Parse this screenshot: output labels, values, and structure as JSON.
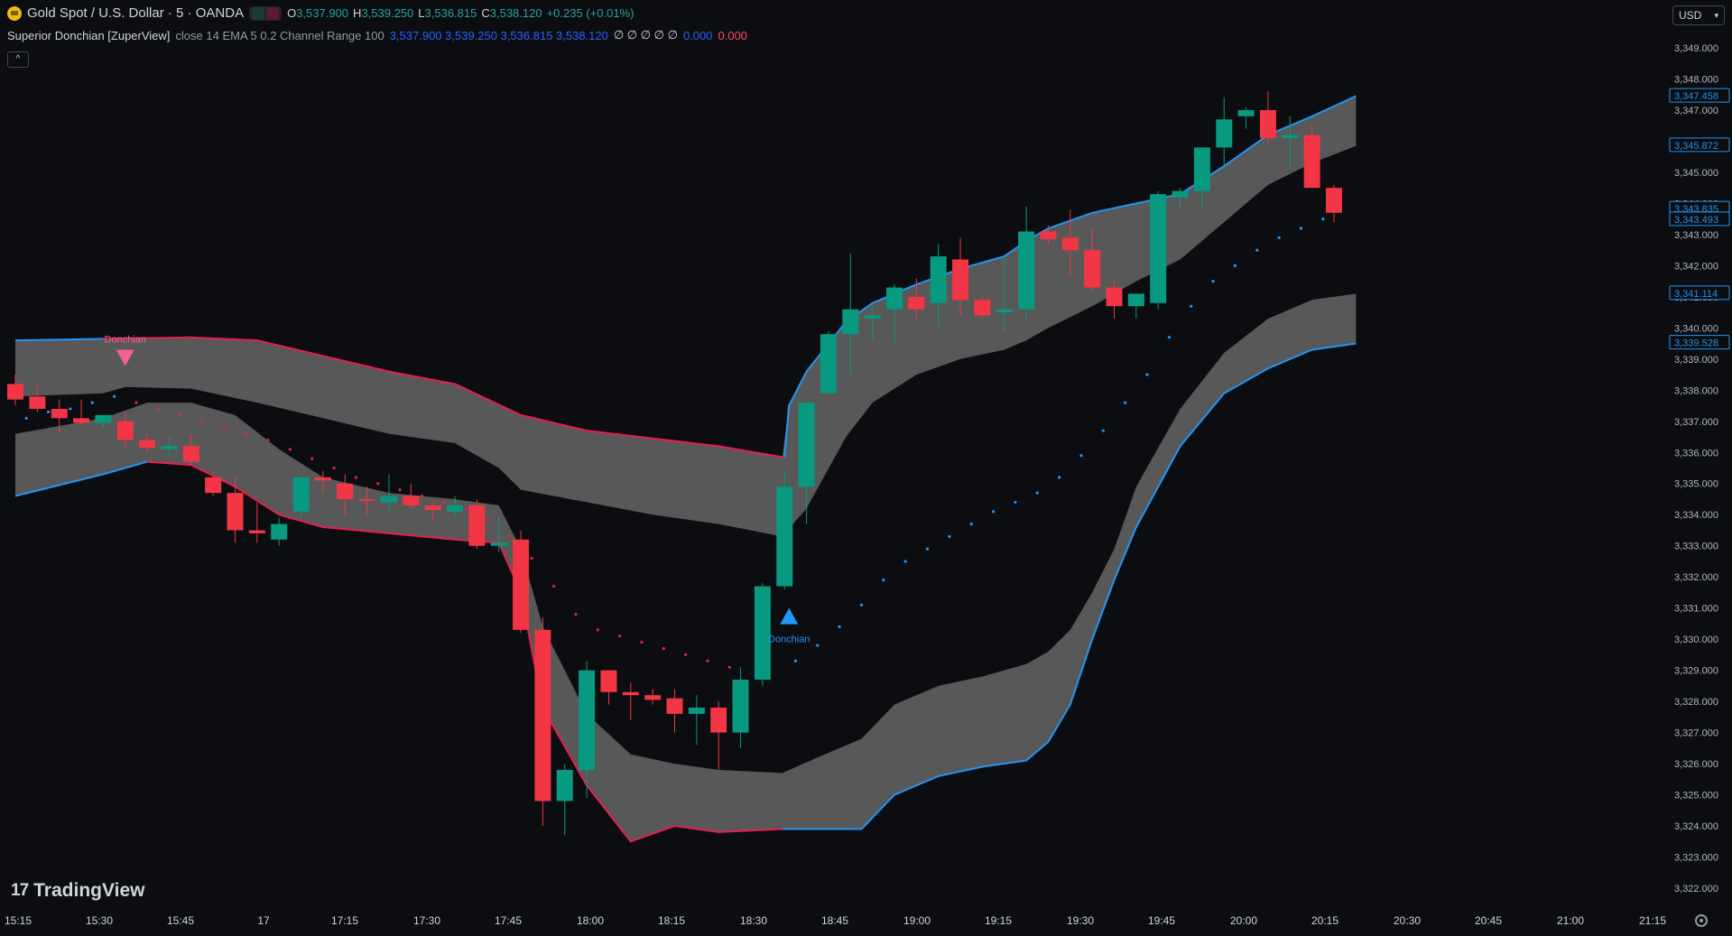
{
  "header": {
    "symbol_title": "Gold Spot / U.S. Dollar · 5 · OANDA",
    "ohlc": {
      "open_label": "O",
      "open": "3,537.900",
      "high_label": "H",
      "high": "3,539.250",
      "low_label": "L",
      "low": "3,536.815",
      "close_label": "C",
      "close": "3,538.120",
      "change": "+0.235 (+0.01%)"
    },
    "indicator": {
      "name": "Superior Donchian [ZuperView]",
      "params": "close 14 EMA 5 0.2 Channel Range 100",
      "values_blue": "3,537.900 3,539.250 3,536.815 3,538.120",
      "values_white": "∅ ∅ ∅ ∅ ∅",
      "value_blue2": "0.000",
      "value_red": "0.000"
    },
    "collapse_icon": "chevron-up-icon"
  },
  "currency_selector": {
    "value": "USD"
  },
  "logo": {
    "text": "TradingView",
    "icon": "tradingview-logo-icon"
  },
  "colors": {
    "bull": "#089981",
    "bear": "#f23645",
    "band_fill": "#5d5d5e",
    "line_blue": "#2196f3",
    "line_red": "#e91e4d",
    "signal_down": "#f06292",
    "signal_up": "#2196f3"
  },
  "chart_data": {
    "type": "candlestick",
    "title": "Gold Spot / U.S. Dollar · 5 · OANDA",
    "x_ticks": [
      "15:15",
      "15:30",
      "15:45",
      "17",
      "17:15",
      "17:30",
      "17:45",
      "18:00",
      "18:15",
      "18:30",
      "18:45",
      "19:00",
      "19:15",
      "19:30",
      "19:45",
      "20:00",
      "20:15",
      "20:30",
      "20:45",
      "21:00",
      "21:15"
    ],
    "y_ticks": [
      "3,349.000",
      "3,348.000",
      "3,347.000",
      "3,346.000",
      "3,345.000",
      "3,344.000",
      "3,343.000",
      "3,342.000",
      "3,341.000",
      "3,340.000",
      "3,339.000",
      "3,338.000",
      "3,337.000",
      "3,336.000",
      "3,335.000",
      "3,334.000",
      "3,333.000",
      "3,332.000",
      "3,331.000",
      "3,330.000",
      "3,329.000",
      "3,328.000",
      "3,327.000",
      "3,326.000",
      "3,325.000",
      "3,324.000",
      "3,323.000",
      "3,322.000"
    ],
    "ylim": [
      3321.5,
      3349.5
    ],
    "price_labels": [
      "3,347.458",
      "3,345.872",
      "3,343.835",
      "3,343.493",
      "3,341.114",
      "3,339.528"
    ],
    "price_label_values": [
      3347.458,
      3345.872,
      3343.835,
      3343.493,
      3341.114,
      3339.528
    ],
    "candles": [
      {
        "o": 3338.2,
        "h": 3338.5,
        "l": 3337.5,
        "c": 3337.7
      },
      {
        "o": 3337.8,
        "h": 3338.2,
        "l": 3337.3,
        "c": 3337.4
      },
      {
        "o": 3337.4,
        "h": 3337.7,
        "l": 3336.6,
        "c": 3337.1
      },
      {
        "o": 3337.1,
        "h": 3337.7,
        "l": 3336.9,
        "c": 3336.95
      },
      {
        "o": 3336.95,
        "h": 3337.2,
        "l": 3336.8,
        "c": 3337.2
      },
      {
        "o": 3337.0,
        "h": 3337.3,
        "l": 3336.1,
        "c": 3336.4
      },
      {
        "o": 3336.4,
        "h": 3336.6,
        "l": 3336.0,
        "c": 3336.15
      },
      {
        "o": 3336.1,
        "h": 3336.5,
        "l": 3335.9,
        "c": 3336.2
      },
      {
        "o": 3336.2,
        "h": 3336.6,
        "l": 3335.6,
        "c": 3335.7
      },
      {
        "o": 3335.2,
        "h": 3335.4,
        "l": 3334.6,
        "c": 3334.7
      },
      {
        "o": 3334.7,
        "h": 3335.2,
        "l": 3333.1,
        "c": 3333.5
      },
      {
        "o": 3333.5,
        "h": 3334.4,
        "l": 3333.1,
        "c": 3333.4
      },
      {
        "o": 3333.2,
        "h": 3333.9,
        "l": 3333.0,
        "c": 3333.7
      },
      {
        "o": 3334.1,
        "h": 3335.2,
        "l": 3333.9,
        "c": 3335.2
      },
      {
        "o": 3335.2,
        "h": 3335.4,
        "l": 3334.7,
        "c": 3335.1
      },
      {
        "o": 3335.0,
        "h": 3335.3,
        "l": 3334.0,
        "c": 3334.5
      },
      {
        "o": 3334.5,
        "h": 3334.9,
        "l": 3334.0,
        "c": 3334.45
      },
      {
        "o": 3334.4,
        "h": 3335.3,
        "l": 3334.1,
        "c": 3334.6
      },
      {
        "o": 3334.6,
        "h": 3335.0,
        "l": 3334.2,
        "c": 3334.3
      },
      {
        "o": 3334.3,
        "h": 3334.4,
        "l": 3333.8,
        "c": 3334.15
      },
      {
        "o": 3334.1,
        "h": 3334.6,
        "l": 3333.9,
        "c": 3334.3
      },
      {
        "o": 3334.3,
        "h": 3334.5,
        "l": 3332.9,
        "c": 3333.0
      },
      {
        "o": 3333.0,
        "h": 3333.9,
        "l": 3332.8,
        "c": 3333.1
      },
      {
        "o": 3333.2,
        "h": 3333.5,
        "l": 3330.2,
        "c": 3330.3
      },
      {
        "o": 3330.3,
        "h": 3330.7,
        "l": 3324.0,
        "c": 3324.8
      },
      {
        "o": 3324.8,
        "h": 3326.0,
        "l": 3323.7,
        "c": 3325.8
      },
      {
        "o": 3325.8,
        "h": 3329.3,
        "l": 3324.9,
        "c": 3329.0
      },
      {
        "o": 3329.0,
        "h": 3329.0,
        "l": 3327.9,
        "c": 3328.3
      },
      {
        "o": 3328.3,
        "h": 3328.6,
        "l": 3327.4,
        "c": 3328.2
      },
      {
        "o": 3328.2,
        "h": 3328.4,
        "l": 3327.9,
        "c": 3328.05
      },
      {
        "o": 3328.1,
        "h": 3328.4,
        "l": 3327.0,
        "c": 3327.6
      },
      {
        "o": 3327.6,
        "h": 3328.2,
        "l": 3326.6,
        "c": 3327.8
      },
      {
        "o": 3327.8,
        "h": 3328.0,
        "l": 3325.8,
        "c": 3327.0
      },
      {
        "o": 3327.0,
        "h": 3329.1,
        "l": 3326.5,
        "c": 3328.7
      },
      {
        "o": 3328.7,
        "h": 3331.8,
        "l": 3328.5,
        "c": 3331.7
      },
      {
        "o": 3331.7,
        "h": 3335.4,
        "l": 3331.6,
        "c": 3334.9
      },
      {
        "o": 3334.9,
        "h": 3337.6,
        "l": 3333.7,
        "c": 3337.6
      },
      {
        "o": 3337.9,
        "h": 3339.9,
        "l": 3337.9,
        "c": 3339.8
      },
      {
        "o": 3339.8,
        "h": 3342.4,
        "l": 3338.5,
        "c": 3340.6
      },
      {
        "o": 3340.3,
        "h": 3340.7,
        "l": 3339.6,
        "c": 3340.4
      },
      {
        "o": 3340.6,
        "h": 3341.4,
        "l": 3339.5,
        "c": 3341.3
      },
      {
        "o": 3341.0,
        "h": 3341.6,
        "l": 3340.2,
        "c": 3340.6
      },
      {
        "o": 3340.8,
        "h": 3342.7,
        "l": 3340.0,
        "c": 3342.3
      },
      {
        "o": 3342.2,
        "h": 3342.9,
        "l": 3340.4,
        "c": 3340.9
      },
      {
        "o": 3340.9,
        "h": 3341.0,
        "l": 3340.3,
        "c": 3340.4
      },
      {
        "o": 3340.5,
        "h": 3342.3,
        "l": 3339.9,
        "c": 3340.6
      },
      {
        "o": 3340.6,
        "h": 3343.9,
        "l": 3340.2,
        "c": 3343.1
      },
      {
        "o": 3343.1,
        "h": 3343.3,
        "l": 3342.7,
        "c": 3342.85
      },
      {
        "o": 3342.9,
        "h": 3343.8,
        "l": 3341.7,
        "c": 3342.5
      },
      {
        "o": 3342.5,
        "h": 3343.2,
        "l": 3341.2,
        "c": 3341.3
      },
      {
        "o": 3341.3,
        "h": 3341.5,
        "l": 3340.3,
        "c": 3340.7
      },
      {
        "o": 3340.7,
        "h": 3341.0,
        "l": 3340.3,
        "c": 3341.1
      },
      {
        "o": 3340.8,
        "h": 3344.4,
        "l": 3340.6,
        "c": 3344.3
      },
      {
        "o": 3344.2,
        "h": 3344.5,
        "l": 3343.9,
        "c": 3344.4
      },
      {
        "o": 3344.4,
        "h": 3345.6,
        "l": 3343.8,
        "c": 3345.8
      },
      {
        "o": 3345.8,
        "h": 3347.4,
        "l": 3345.1,
        "c": 3346.7
      },
      {
        "o": 3346.8,
        "h": 3347.1,
        "l": 3346.4,
        "c": 3347.0
      },
      {
        "o": 3347.0,
        "h": 3347.6,
        "l": 3345.9,
        "c": 3346.1
      },
      {
        "o": 3346.1,
        "h": 3346.8,
        "l": 3345.1,
        "c": 3346.2
      },
      {
        "o": 3346.2,
        "h": 3346.5,
        "l": 3344.5,
        "c": 3344.5
      },
      {
        "o": 3344.5,
        "h": 3344.6,
        "l": 3343.4,
        "c": 3343.7
      }
    ],
    "upper_channel": {
      "outer": [
        [
          0,
          3339.6
        ],
        [
          4,
          3339.65
        ],
        [
          8,
          3339.7
        ],
        [
          11,
          3339.6
        ],
        [
          14,
          3339.1
        ],
        [
          17,
          3338.6
        ],
        [
          20,
          3338.2
        ],
        [
          23,
          3337.2
        ],
        [
          26,
          3336.7
        ],
        [
          29,
          3336.45
        ],
        [
          32,
          3336.2
        ],
        [
          35,
          3335.85
        ],
        [
          34.9,
          3335.85
        ],
        [
          35.2,
          3337.5
        ],
        [
          36,
          3338.6
        ],
        [
          37.8,
          3340.2
        ],
        [
          39,
          3340.8
        ],
        [
          41,
          3341.4
        ],
        [
          43,
          3341.9
        ],
        [
          45,
          3342.3
        ],
        [
          46,
          3342.8
        ],
        [
          47,
          3343.2
        ],
        [
          49,
          3343.7
        ],
        [
          51,
          3344.0
        ],
        [
          53,
          3344.3
        ],
        [
          55,
          3345.2
        ],
        [
          57,
          3346.2
        ],
        [
          59,
          3346.8
        ],
        [
          61,
          3347.45
        ]
      ],
      "inner": [
        [
          0,
          3337.8
        ],
        [
          4,
          3337.9
        ],
        [
          5,
          3338.1
        ],
        [
          8,
          3338.05
        ],
        [
          11,
          3337.6
        ],
        [
          14,
          3337.1
        ],
        [
          17,
          3336.6
        ],
        [
          20,
          3336.3
        ],
        [
          22,
          3335.5
        ],
        [
          23,
          3334.8
        ],
        [
          26,
          3334.4
        ],
        [
          29,
          3334.0
        ],
        [
          32,
          3333.7
        ],
        [
          34.9,
          3333.3
        ],
        [
          36,
          3334.2
        ],
        [
          37.8,
          3336.5
        ],
        [
          39,
          3337.6
        ],
        [
          41,
          3338.5
        ],
        [
          43,
          3339.0
        ],
        [
          45,
          3339.3
        ],
        [
          46,
          3339.6
        ],
        [
          47,
          3340.0
        ],
        [
          49,
          3340.7
        ],
        [
          51,
          3341.5
        ],
        [
          53,
          3342.2
        ],
        [
          55,
          3343.4
        ],
        [
          57,
          3344.6
        ],
        [
          59,
          3345.3
        ],
        [
          61,
          3345.85
        ]
      ]
    },
    "lower_channel": {
      "outer": [
        [
          0,
          3334.6
        ],
        [
          4,
          3335.3
        ],
        [
          6,
          3335.7
        ],
        [
          8,
          3335.6
        ],
        [
          10,
          3334.9
        ],
        [
          12,
          3334.0
        ],
        [
          14,
          3333.6
        ],
        [
          17,
          3333.4
        ],
        [
          20,
          3333.2
        ],
        [
          22,
          3333.1
        ],
        [
          23,
          3331.5
        ],
        [
          24,
          3327.8
        ],
        [
          26,
          3325.3
        ],
        [
          28,
          3323.5
        ],
        [
          30,
          3324.0
        ],
        [
          32,
          3323.8
        ],
        [
          34.9,
          3323.9
        ],
        [
          38.5,
          3323.9
        ],
        [
          40,
          3325.0
        ],
        [
          42,
          3325.6
        ],
        [
          44,
          3325.9
        ],
        [
          46,
          3326.1
        ],
        [
          47,
          3326.7
        ],
        [
          48,
          3327.9
        ],
        [
          49,
          3330.0
        ],
        [
          50,
          3331.9
        ],
        [
          51,
          3333.6
        ],
        [
          53,
          3336.2
        ],
        [
          55,
          3337.9
        ],
        [
          57,
          3338.7
        ],
        [
          59,
          3339.3
        ],
        [
          61,
          3339.5
        ]
      ],
      "inner": [
        [
          0,
          3336.6
        ],
        [
          4,
          3337.1
        ],
        [
          6,
          3337.6
        ],
        [
          8,
          3337.6
        ],
        [
          10,
          3337.2
        ],
        [
          12,
          3336.1
        ],
        [
          14,
          3335.2
        ],
        [
          17,
          3334.7
        ],
        [
          20,
          3334.5
        ],
        [
          22,
          3334.3
        ],
        [
          23,
          3332.9
        ],
        [
          24,
          3330.4
        ],
        [
          26,
          3327.6
        ],
        [
          28,
          3326.3
        ],
        [
          30,
          3326.0
        ],
        [
          32,
          3325.8
        ],
        [
          34.9,
          3325.7
        ],
        [
          36.5,
          3326.2
        ],
        [
          38.5,
          3326.8
        ],
        [
          40,
          3327.9
        ],
        [
          42,
          3328.5
        ],
        [
          44,
          3328.8
        ],
        [
          46,
          3329.2
        ],
        [
          47,
          3329.6
        ],
        [
          48,
          3330.3
        ],
        [
          49,
          3331.5
        ],
        [
          50,
          3332.9
        ],
        [
          51,
          3334.9
        ],
        [
          53,
          3337.4
        ],
        [
          55,
          3339.2
        ],
        [
          57,
          3340.3
        ],
        [
          59,
          3340.9
        ],
        [
          61,
          3341.1
        ]
      ]
    },
    "trail_dots": {
      "red": [
        [
          5.5,
          3337.6
        ],
        [
          6.5,
          3337.4
        ],
        [
          7.5,
          3337.2
        ],
        [
          8.5,
          3337.0
        ],
        [
          9.5,
          3336.8
        ],
        [
          10.5,
          3336.6
        ],
        [
          11.5,
          3336.4
        ],
        [
          12.5,
          3336.1
        ],
        [
          13.5,
          3335.8
        ],
        [
          14.5,
          3335.5
        ],
        [
          15.5,
          3335.2
        ],
        [
          16.5,
          3335.0
        ],
        [
          17.5,
          3334.8
        ],
        [
          18.5,
          3334.6
        ],
        [
          19.5,
          3334.4
        ],
        [
          20.5,
          3334.2
        ],
        [
          21.5,
          3333.8
        ],
        [
          22.5,
          3333.3
        ],
        [
          23.5,
          3332.6
        ],
        [
          24.5,
          3331.7
        ],
        [
          25.5,
          3330.8
        ],
        [
          26.5,
          3330.3
        ],
        [
          27.5,
          3330.1
        ],
        [
          28.5,
          3329.9
        ],
        [
          29.5,
          3329.7
        ],
        [
          30.5,
          3329.5
        ],
        [
          31.5,
          3329.3
        ],
        [
          32.5,
          3329.1
        ]
      ],
      "blue": [
        [
          0.5,
          3337.1
        ],
        [
          1.5,
          3337.3
        ],
        [
          2.5,
          3337.4
        ],
        [
          3.5,
          3337.6
        ],
        [
          4.5,
          3337.8
        ],
        [
          35.5,
          3329.3
        ],
        [
          36.5,
          3329.8
        ],
        [
          37.5,
          3330.4
        ],
        [
          38.5,
          3331.1
        ],
        [
          39.5,
          3331.9
        ],
        [
          40.5,
          3332.5
        ],
        [
          41.5,
          3332.9
        ],
        [
          42.5,
          3333.3
        ],
        [
          43.5,
          3333.7
        ],
        [
          44.5,
          3334.1
        ],
        [
          45.5,
          3334.4
        ],
        [
          46.5,
          3334.7
        ],
        [
          47.5,
          3335.2
        ],
        [
          48.5,
          3335.9
        ],
        [
          49.5,
          3336.7
        ],
        [
          50.5,
          3337.6
        ],
        [
          51.5,
          3338.5
        ],
        [
          52.5,
          3339.7
        ],
        [
          53.5,
          3340.7
        ],
        [
          54.5,
          3341.5
        ],
        [
          55.5,
          3342.0
        ],
        [
          56.5,
          3342.5
        ],
        [
          57.5,
          3342.9
        ],
        [
          58.5,
          3343.2
        ],
        [
          59.5,
          3343.5
        ]
      ]
    },
    "signals": [
      {
        "type": "sell",
        "label": "Donchian",
        "index": 5
      },
      {
        "type": "buy",
        "label": "Donchian",
        "index": 35
      }
    ],
    "grid": false,
    "legend": "none"
  }
}
